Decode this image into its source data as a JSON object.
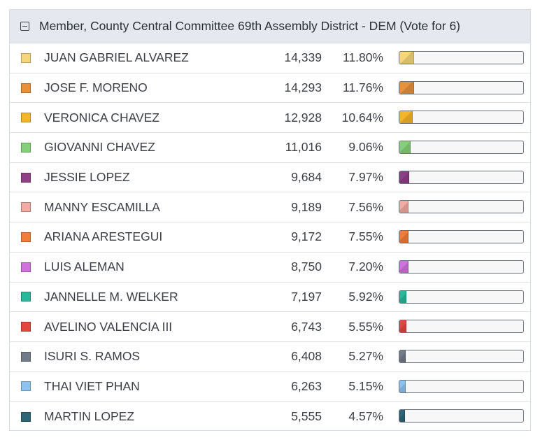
{
  "contest": {
    "title": "Member, County Central Committee 69th Assembly District - DEM (Vote for 6)",
    "collapse_icon": "minus-square-icon"
  },
  "candidates": [
    {
      "name": "JUAN GABRIEL ALVAREZ",
      "votes": "14,339",
      "percent": "11.80%",
      "share": 11.8,
      "color": "#f5d67b"
    },
    {
      "name": "JOSE F. MORENO",
      "votes": "14,293",
      "percent": "11.76%",
      "share": 11.76,
      "color": "#e8913a"
    },
    {
      "name": "VERONICA CHAVEZ",
      "votes": "12,928",
      "percent": "10.64%",
      "share": 10.64,
      "color": "#f5b52a"
    },
    {
      "name": "GIOVANNI CHAVEZ",
      "votes": "11,016",
      "percent": "9.06%",
      "share": 9.06,
      "color": "#86cf7a"
    },
    {
      "name": "JESSIE LOPEZ",
      "votes": "9,684",
      "percent": "7.97%",
      "share": 7.97,
      "color": "#8e3f86"
    },
    {
      "name": "MANNY ESCAMILLA",
      "votes": "9,189",
      "percent": "7.56%",
      "share": 7.56,
      "color": "#f2aaa2"
    },
    {
      "name": "ARIANA ARESTEGUI",
      "votes": "9,172",
      "percent": "7.55%",
      "share": 7.55,
      "color": "#f07d3a"
    },
    {
      "name": "LUIS ALEMAN",
      "votes": "8,750",
      "percent": "7.20%",
      "share": 7.2,
      "color": "#cf72dc"
    },
    {
      "name": "JANNELLE M. WELKER",
      "votes": "7,197",
      "percent": "5.92%",
      "share": 5.92,
      "color": "#27b99a"
    },
    {
      "name": "AVELINO VALENCIA III",
      "votes": "6,743",
      "percent": "5.55%",
      "share": 5.55,
      "color": "#e2473d"
    },
    {
      "name": "ISURI S. RAMOS",
      "votes": "6,408",
      "percent": "5.27%",
      "share": 5.27,
      "color": "#727c88"
    },
    {
      "name": "THAI VIET PHAN",
      "votes": "6,263",
      "percent": "5.15%",
      "share": 5.15,
      "color": "#8ec3ef"
    },
    {
      "name": "MARTIN LOPEZ",
      "votes": "5,555",
      "percent": "4.57%",
      "share": 4.57,
      "color": "#2f6677"
    }
  ]
}
